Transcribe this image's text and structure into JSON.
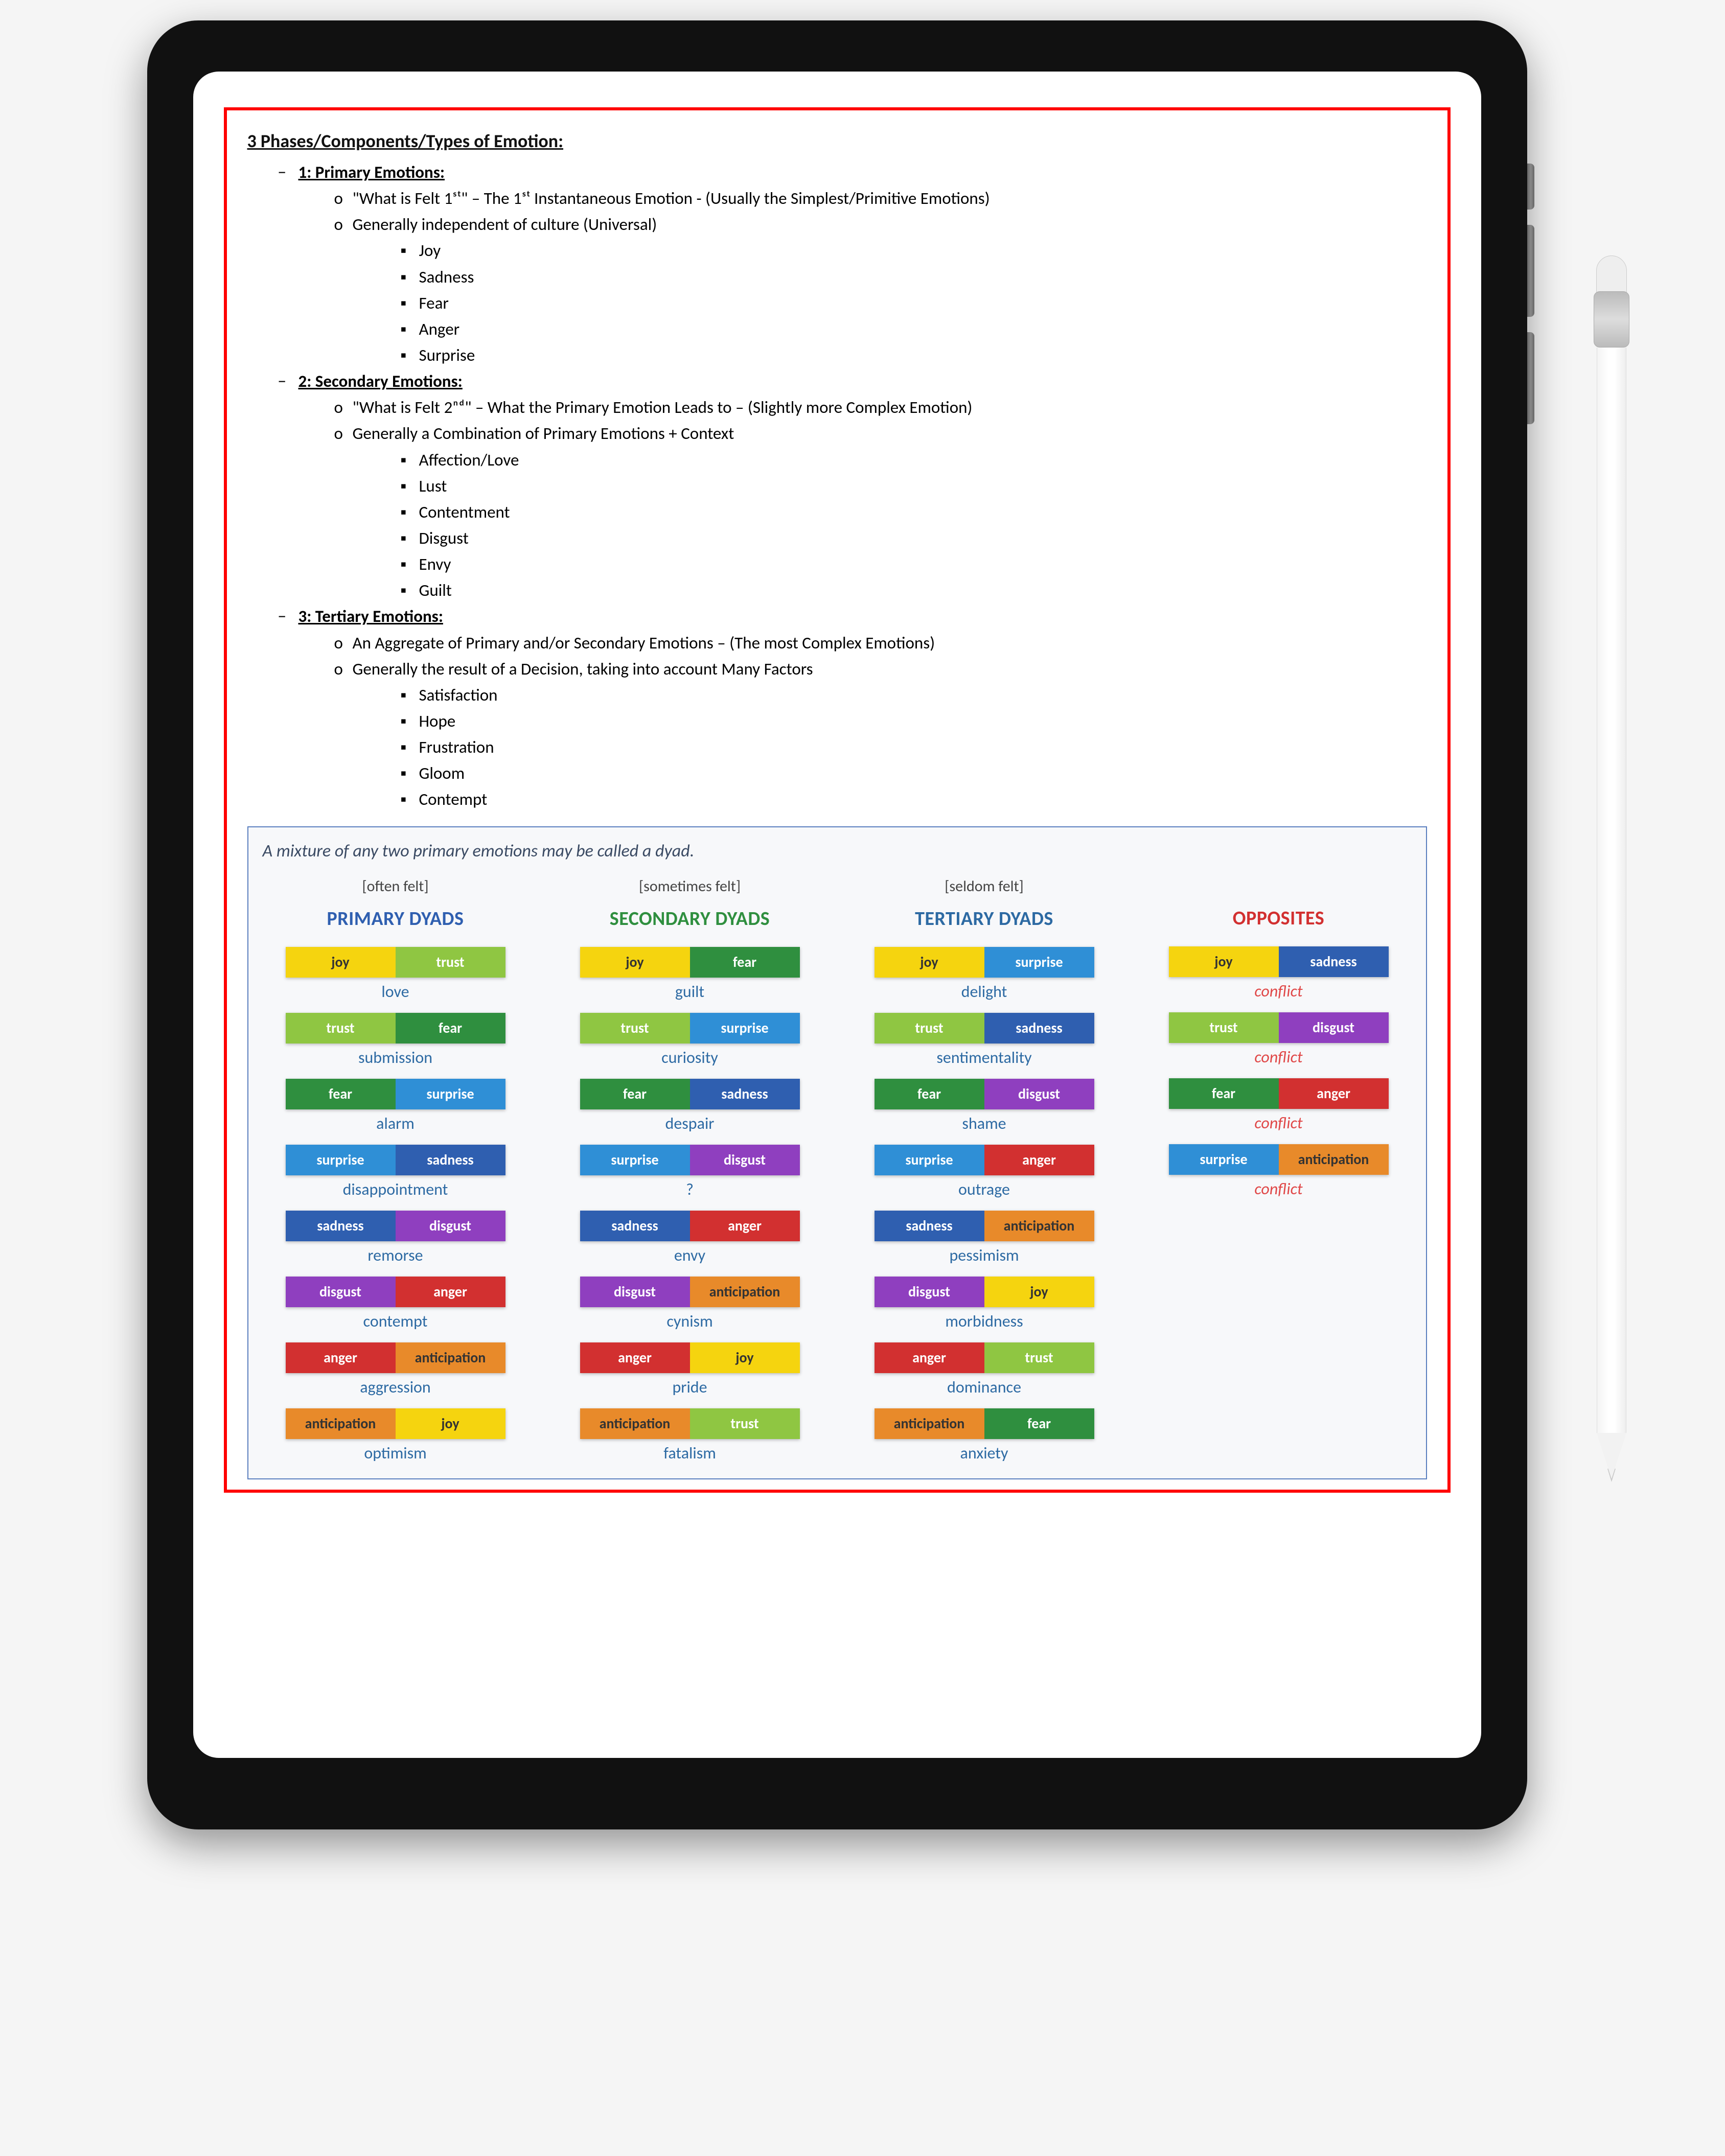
{
  "palette": {
    "joy": "#f5d40f",
    "trust": "#8fc642",
    "fear": "#2f8f3f",
    "surprise": "#2f8fd6",
    "sadness": "#2f5fb0",
    "disgust": "#8f3fbf",
    "anger": "#d23030",
    "anticipation": "#e88a2a"
  },
  "columnHeadColors": {
    "primary": "#2f5fb0",
    "secondary": "#2f8f3f",
    "tertiary": "#2d6aa3",
    "opposites": "#d23030"
  },
  "outline": {
    "title": "3 Phases/Components/Types of Emotion:",
    "sections": [
      {
        "heading": "1: Primary Emotions:",
        "points": [
          "\"What is Felt 1ˢᵗ\" – The 1ˢᵗ Instantaneous Emotion - (Usually the Simplest/Primitive Emotions)",
          "Generally independent of culture (Universal)"
        ],
        "items": [
          "Joy",
          "Sadness",
          "Fear",
          "Anger",
          "Surprise"
        ]
      },
      {
        "heading": "2: Secondary Emotions:",
        "points": [
          "\"What is Felt 2ⁿᵈ\" – What the Primary Emotion Leads to – (Slightly more Complex Emotion)",
          "Generally a Combination of Primary Emotions + Context"
        ],
        "items": [
          "Affection/Love",
          "Lust",
          "Contentment",
          "Disgust",
          "Envy",
          "Guilt"
        ]
      },
      {
        "heading": "3: Tertiary Emotions:",
        "points": [
          "An Aggregate of Primary and/or Secondary Emotions – (The most Complex Emotions)",
          "Generally the result of a Decision, taking into account Many Factors"
        ],
        "items": [
          "Satisfaction",
          "Hope",
          "Frustration",
          "Gloom",
          "Contempt"
        ]
      }
    ]
  },
  "chart": {
    "title": "A mixture of any two primary emotions may be called a dyad.",
    "columns": [
      {
        "key": "primary",
        "sub": "[often felt]",
        "head": "PRIMARY DYADS",
        "cells": [
          {
            "a": "joy",
            "b": "trust",
            "result": "love"
          },
          {
            "a": "trust",
            "b": "fear",
            "result": "submission"
          },
          {
            "a": "fear",
            "b": "surprise",
            "result": "alarm"
          },
          {
            "a": "surprise",
            "b": "sadness",
            "result": "disappointment"
          },
          {
            "a": "sadness",
            "b": "disgust",
            "result": "remorse"
          },
          {
            "a": "disgust",
            "b": "anger",
            "result": "contempt"
          },
          {
            "a": "anger",
            "b": "anticipation",
            "result": "aggression"
          },
          {
            "a": "anticipation",
            "b": "joy",
            "result": "optimism"
          }
        ]
      },
      {
        "key": "secondary",
        "sub": "[sometimes felt]",
        "head": "SECONDARY DYADS",
        "cells": [
          {
            "a": "joy",
            "b": "fear",
            "result": "guilt"
          },
          {
            "a": "trust",
            "b": "surprise",
            "result": "curiosity"
          },
          {
            "a": "fear",
            "b": "sadness",
            "result": "despair"
          },
          {
            "a": "surprise",
            "b": "disgust",
            "result": "?"
          },
          {
            "a": "sadness",
            "b": "anger",
            "result": "envy"
          },
          {
            "a": "disgust",
            "b": "anticipation",
            "result": "cynism"
          },
          {
            "a": "anger",
            "b": "joy",
            "result": "pride"
          },
          {
            "a": "anticipation",
            "b": "trust",
            "result": "fatalism"
          }
        ]
      },
      {
        "key": "tertiary",
        "sub": "[seldom felt]",
        "head": "TERTIARY DYADS",
        "cells": [
          {
            "a": "joy",
            "b": "surprise",
            "result": "delight"
          },
          {
            "a": "trust",
            "b": "sadness",
            "result": "sentimentality"
          },
          {
            "a": "fear",
            "b": "disgust",
            "result": "shame"
          },
          {
            "a": "surprise",
            "b": "anger",
            "result": "outrage"
          },
          {
            "a": "sadness",
            "b": "anticipation",
            "result": "pessimism"
          },
          {
            "a": "disgust",
            "b": "joy",
            "result": "morbidness"
          },
          {
            "a": "anger",
            "b": "trust",
            "result": "dominance"
          },
          {
            "a": "anticipation",
            "b": "fear",
            "result": "anxiety"
          }
        ]
      },
      {
        "key": "opposites",
        "sub": "",
        "head": "OPPOSITES",
        "cells": [
          {
            "a": "joy",
            "b": "sadness",
            "result": "conflict",
            "conflict": true
          },
          {
            "a": "trust",
            "b": "disgust",
            "result": "conflict",
            "conflict": true
          },
          {
            "a": "fear",
            "b": "anger",
            "result": "conflict",
            "conflict": true
          },
          {
            "a": "surprise",
            "b": "anticipation",
            "result": "conflict",
            "conflict": true
          }
        ]
      }
    ]
  }
}
